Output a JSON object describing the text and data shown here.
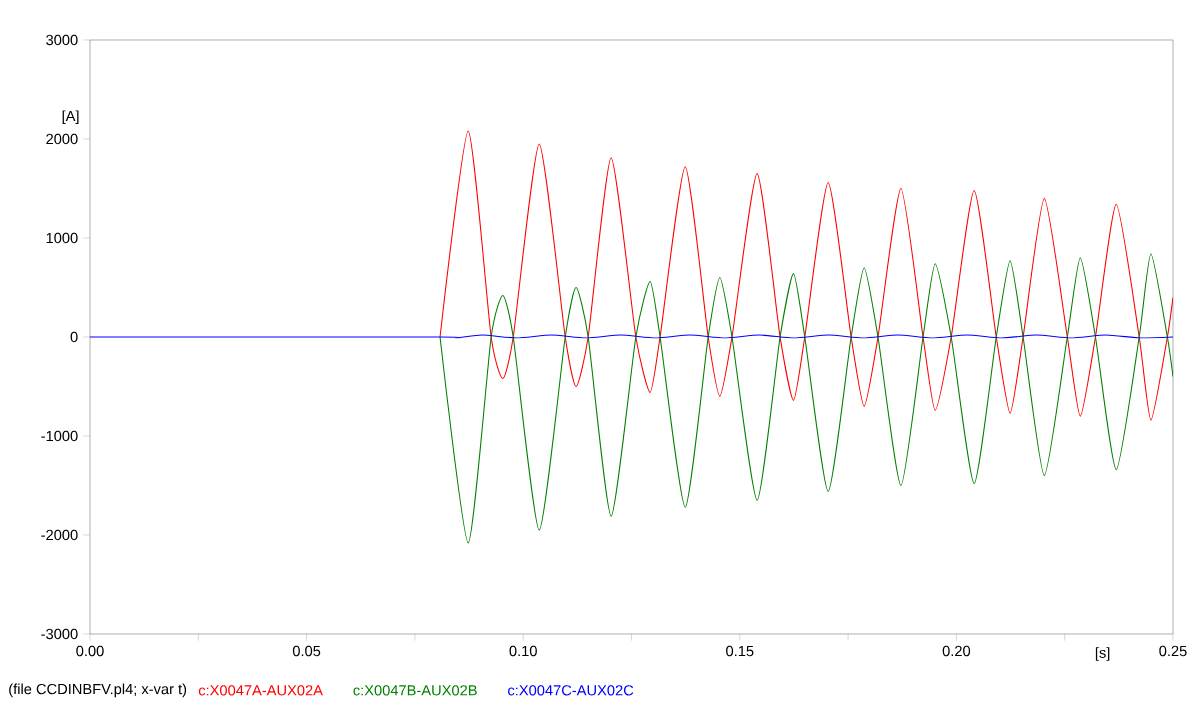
{
  "chart_data": {
    "type": "line",
    "xlabel": "[s]",
    "ylabel": "[A]",
    "annotations": [
      "(file CCDINBFV.pl4; x-var t)"
    ],
    "legend": "bottom",
    "line_style": "solid",
    "xlim": [
      0,
      0.25
    ],
    "ylim": [
      -3000,
      3000
    ],
    "xticks": [
      {
        "value": 0,
        "label": "0.00"
      },
      {
        "value": 0.025,
        "label": null
      },
      {
        "value": 0.05,
        "label": "0.05"
      },
      {
        "value": 0.075,
        "label": null
      },
      {
        "value": 0.1,
        "label": "0.10"
      },
      {
        "value": 0.125,
        "label": null
      },
      {
        "value": 0.15,
        "label": "0.15"
      },
      {
        "value": 0.175,
        "label": null
      },
      {
        "value": 0.2,
        "label": "0.20"
      },
      {
        "value": 0.225,
        "label": null
      },
      {
        "value": 0.25,
        "label": "0.25"
      }
    ],
    "yticks": [
      -3000,
      -2000,
      -1000,
      0,
      1000,
      2000,
      3000
    ],
    "series": [
      {
        "name": "c:X0047A-AUX02A",
        "color": "#ff0000",
        "x": [
          0.0808,
          0.0873,
          0.0926,
          0.0953,
          0.0977,
          0.1037,
          0.1097,
          0.1122,
          0.115,
          0.1203,
          0.126,
          0.1293,
          0.1316,
          0.1374,
          0.1427,
          0.1454,
          0.1482,
          0.154,
          0.1593,
          0.1624,
          0.165,
          0.1704,
          0.1757,
          0.1787,
          0.1819,
          0.1872,
          0.1923,
          0.1951,
          0.1988,
          0.2041,
          0.2092,
          0.2124,
          0.2154,
          0.2203,
          0.2256,
          0.2286,
          0.2321,
          0.2369,
          0.2422,
          0.2449,
          0.2487,
          0.25
        ],
        "values": [
          0,
          2080,
          0,
          -420,
          0,
          1950,
          0,
          -500,
          0,
          1810,
          0,
          -560,
          0,
          1720,
          0,
          -600,
          0,
          1650,
          0,
          -640,
          0,
          1560,
          0,
          -700,
          0,
          1500,
          0,
          -740,
          0,
          1480,
          0,
          -770,
          0,
          1400,
          0,
          -800,
          0,
          1340,
          0,
          -840,
          0,
          400
        ]
      },
      {
        "name": "c:X0047B-AUX02B",
        "color": "#008000",
        "x": [
          0.0808,
          0.0873,
          0.0926,
          0.0953,
          0.0977,
          0.1037,
          0.1097,
          0.1122,
          0.115,
          0.1203,
          0.126,
          0.1293,
          0.1316,
          0.1374,
          0.1427,
          0.1454,
          0.1482,
          0.154,
          0.1593,
          0.1624,
          0.165,
          0.1704,
          0.1757,
          0.1787,
          0.1819,
          0.1872,
          0.1923,
          0.1951,
          0.1988,
          0.2041,
          0.2092,
          0.2124,
          0.2154,
          0.2203,
          0.2256,
          0.2286,
          0.2321,
          0.2369,
          0.2422,
          0.2449,
          0.2487,
          0.25
        ],
        "values": [
          0,
          -2080,
          0,
          420,
          0,
          -1950,
          0,
          500,
          0,
          -1810,
          0,
          560,
          0,
          -1720,
          0,
          600,
          0,
          -1650,
          0,
          640,
          0,
          -1560,
          0,
          700,
          0,
          -1500,
          0,
          740,
          0,
          -1480,
          0,
          770,
          0,
          -1400,
          0,
          800,
          0,
          -1340,
          0,
          840,
          0,
          -400
        ]
      },
      {
        "name": "c:X0047C-AUX02C",
        "color": "#0000ff",
        "x": [
          0,
          0.0808,
          0.0845,
          0.0905,
          0.0985,
          0.1065,
          0.1145,
          0.1225,
          0.1305,
          0.1385,
          0.1465,
          0.1545,
          0.1625,
          0.1705,
          0.1785,
          0.1865,
          0.1945,
          0.2025,
          0.2105,
          0.2185,
          0.2265,
          0.2345,
          0.2425,
          0.25
        ],
        "values": [
          0,
          0,
          -10,
          20,
          -10,
          20,
          -10,
          20,
          -10,
          20,
          -10,
          20,
          -10,
          20,
          -10,
          20,
          -10,
          20,
          -10,
          20,
          -10,
          20,
          -10,
          0
        ]
      }
    ]
  }
}
